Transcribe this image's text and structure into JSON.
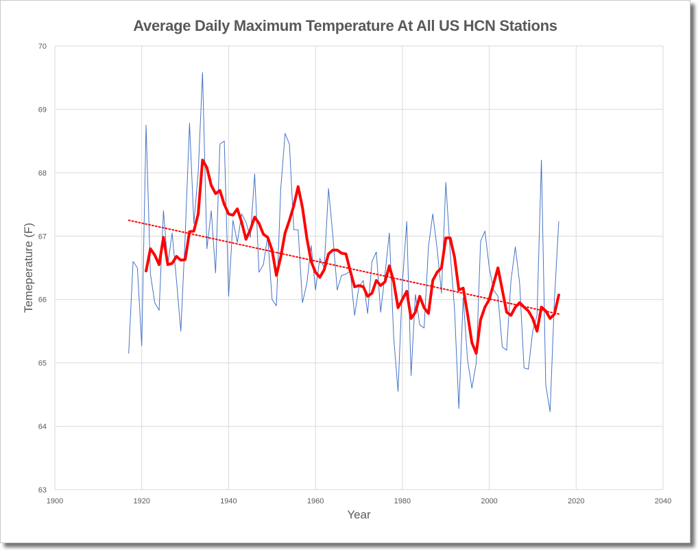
{
  "chart_data": {
    "type": "line",
    "title": "Average Daily Maximum Temperature At All US HCN Stations",
    "xlabel": "Year",
    "ylabel": "Temeperature (F)",
    "xlim": [
      1900,
      2040
    ],
    "ylim": [
      63,
      70
    ],
    "x_ticks": [
      "1900",
      "1920",
      "1940",
      "1960",
      "1980",
      "2000",
      "2020",
      "2040"
    ],
    "y_ticks": [
      "63",
      "64",
      "65",
      "66",
      "67",
      "68",
      "69",
      "70"
    ],
    "grid": true,
    "legend": "none",
    "series": [
      {
        "style": "thin-line",
        "color": "#4472c4",
        "x": [
          1917,
          1918,
          1919,
          1920,
          1921,
          1922,
          1923,
          1924,
          1925,
          1926,
          1927,
          1928,
          1929,
          1930,
          1931,
          1932,
          1933,
          1934,
          1935,
          1936,
          1937,
          1938,
          1939,
          1940,
          1941,
          1942,
          1943,
          1944,
          1945,
          1946,
          1947,
          1948,
          1949,
          1950,
          1951,
          1952,
          1953,
          1954,
          1955,
          1956,
          1957,
          1958,
          1959,
          1960,
          1961,
          1962,
          1963,
          1964,
          1965,
          1966,
          1967,
          1968,
          1969,
          1970,
          1971,
          1972,
          1973,
          1974,
          1975,
          1976,
          1977,
          1978,
          1979,
          1980,
          1981,
          1982,
          1983,
          1984,
          1985,
          1986,
          1987,
          1988,
          1989,
          1990,
          1991,
          1992,
          1993,
          1994,
          1995,
          1996,
          1997,
          1998,
          1999,
          2000,
          2001,
          2002,
          2003,
          2004,
          2005,
          2006,
          2007,
          2008,
          2009,
          2010,
          2011,
          2012,
          2013,
          2014,
          2015,
          2016
        ],
        "y": [
          65.15,
          66.6,
          66.5,
          65.27,
          68.75,
          66.4,
          65.95,
          65.83,
          67.4,
          66.55,
          67.05,
          66.3,
          65.5,
          67.0,
          68.78,
          67.2,
          68.0,
          69.58,
          66.8,
          67.4,
          66.42,
          68.45,
          68.5,
          66.05,
          67.25,
          66.9,
          67.35,
          67.22,
          66.98,
          67.98,
          66.43,
          66.55,
          67.0,
          66.0,
          65.9,
          67.75,
          68.62,
          68.45,
          67.1,
          67.1,
          65.95,
          66.25,
          66.85,
          66.15,
          66.65,
          66.5,
          67.75,
          67.0,
          66.15,
          66.38,
          66.4,
          66.45,
          65.75,
          66.2,
          66.3,
          65.78,
          66.6,
          66.75,
          65.8,
          66.4,
          67.05,
          65.4,
          64.55,
          66.25,
          67.23,
          64.8,
          66.08,
          65.6,
          65.55,
          66.83,
          67.35,
          66.8,
          66.1,
          67.85,
          66.75,
          65.85,
          64.28,
          66.03,
          65.05,
          64.6,
          65.0,
          66.92,
          67.08,
          66.5,
          66.15,
          66.05,
          65.25,
          65.2,
          66.3,
          66.83,
          66.25,
          64.92,
          64.9,
          65.5,
          65.75,
          68.2,
          64.65,
          64.23,
          66.0,
          67.23
        ]
      },
      {
        "style": "moving-average",
        "color": "#ff0000",
        "x": [
          1921,
          1922,
          1923,
          1924,
          1925,
          1926,
          1927,
          1928,
          1929,
          1930,
          1931,
          1932,
          1933,
          1934,
          1935,
          1936,
          1937,
          1938,
          1939,
          1940,
          1941,
          1942,
          1943,
          1944,
          1945,
          1946,
          1947,
          1948,
          1949,
          1950,
          1951,
          1952,
          1953,
          1954,
          1955,
          1956,
          1957,
          1958,
          1959,
          1960,
          1961,
          1962,
          1963,
          1964,
          1965,
          1966,
          1967,
          1968,
          1969,
          1970,
          1971,
          1972,
          1973,
          1974,
          1975,
          1976,
          1977,
          1978,
          1979,
          1980,
          1981,
          1982,
          1983,
          1984,
          1985,
          1986,
          1987,
          1988,
          1989,
          1990,
          1991,
          1992,
          1993,
          1994,
          1995,
          1996,
          1997,
          1998,
          1999,
          2000,
          2001,
          2002,
          2003,
          2004,
          2005,
          2006,
          2007,
          2008,
          2009,
          2010,
          2011,
          2012,
          2013,
          2014,
          2015,
          2016
        ],
        "y": [
          66.45,
          66.8,
          66.7,
          66.55,
          66.98,
          66.55,
          66.57,
          66.68,
          66.62,
          66.63,
          67.07,
          67.08,
          67.35,
          68.2,
          68.08,
          67.8,
          67.67,
          67.72,
          67.5,
          67.35,
          67.33,
          67.43,
          67.22,
          66.95,
          67.1,
          67.3,
          67.2,
          67.03,
          66.98,
          66.78,
          66.38,
          66.67,
          67.05,
          67.25,
          67.48,
          67.78,
          67.45,
          66.97,
          66.6,
          66.43,
          66.35,
          66.47,
          66.72,
          66.78,
          66.78,
          66.73,
          66.72,
          66.45,
          66.2,
          66.22,
          66.2,
          66.05,
          66.1,
          66.3,
          66.22,
          66.28,
          66.53,
          66.28,
          65.87,
          66.0,
          66.13,
          65.7,
          65.8,
          66.05,
          65.87,
          65.78,
          66.3,
          66.43,
          66.5,
          66.97,
          66.97,
          66.67,
          66.15,
          66.18,
          65.77,
          65.32,
          65.15,
          65.68,
          65.88,
          66.0,
          66.25,
          66.5,
          66.15,
          65.8,
          65.75,
          65.88,
          65.95,
          65.88,
          65.82,
          65.7,
          65.5,
          65.88,
          65.82,
          65.7,
          65.77,
          66.07
        ]
      },
      {
        "style": "trendline",
        "color": "#ff0000",
        "x": [
          1917,
          2016
        ],
        "y": [
          67.25,
          65.77
        ]
      }
    ]
  }
}
